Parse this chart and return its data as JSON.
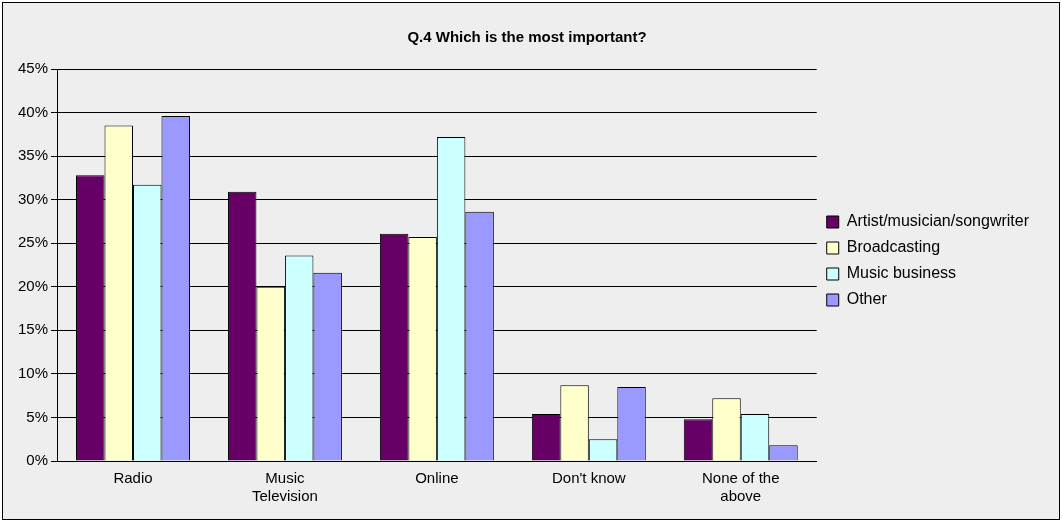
{
  "chart_data": {
    "type": "bar",
    "title": "Q.4 Which is the most important?",
    "categories": [
      "Radio",
      "Music Television",
      "Online",
      "Don't know",
      "None of the above"
    ],
    "series": [
      {
        "name": "Artist/musician/songwriter",
        "color": "#660066",
        "values": [
          32.8,
          30.9,
          26.1,
          5.4,
          4.8
        ]
      },
      {
        "name": "Broadcasting",
        "color": "#ffffcc",
        "values": [
          38.5,
          20.0,
          25.7,
          8.7,
          7.2
        ]
      },
      {
        "name": "Music business",
        "color": "#ccffff",
        "values": [
          31.7,
          23.6,
          37.2,
          2.5,
          5.4
        ]
      },
      {
        "name": "Other",
        "color": "#9999ff",
        "values": [
          39.6,
          21.6,
          28.6,
          8.5,
          1.8
        ]
      }
    ],
    "ylim": [
      0,
      45
    ],
    "yticks": [
      {
        "value": 0,
        "label": "0%"
      },
      {
        "value": 5,
        "label": "5%"
      },
      {
        "value": 10,
        "label": "10%"
      },
      {
        "value": 15,
        "label": "15%"
      },
      {
        "value": 20,
        "label": "20%"
      },
      {
        "value": 25,
        "label": "25%"
      },
      {
        "value": 30,
        "label": "30%"
      },
      {
        "value": 35,
        "label": "35%"
      },
      {
        "value": 40,
        "label": "40%"
      },
      {
        "value": 45,
        "label": "45%"
      }
    ],
    "grid": "y",
    "legend": "right"
  }
}
